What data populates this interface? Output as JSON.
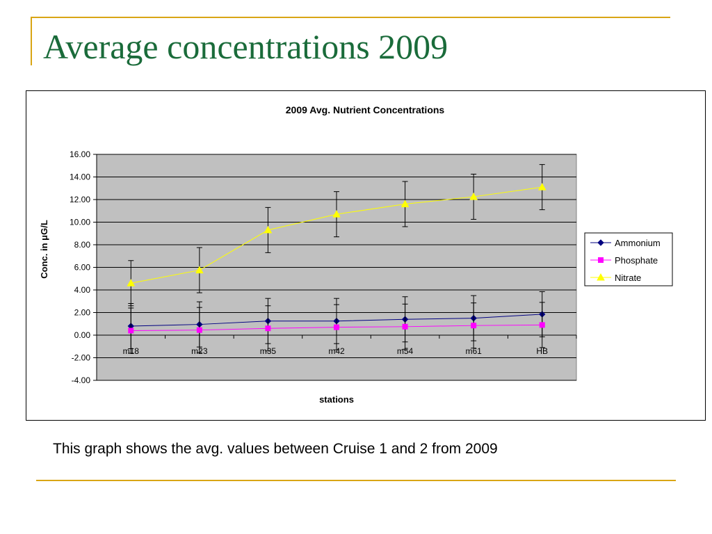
{
  "slide": {
    "title": "Average concentrations 2009",
    "caption": "This graph shows the avg. values between Cruise 1 and 2 from 2009"
  },
  "colors": {
    "title": "#1a6b3a",
    "rule": "#d9a514",
    "plot_background": "#c0c0c0",
    "ammonium": "#000080",
    "phosphate": "#ff00ff",
    "nitrate": "#ffff00"
  },
  "chart_data": {
    "type": "line",
    "title": "2009 Avg. Nutrient Concentrations",
    "xlabel": "stations",
    "ylabel": "Conc. in μG/L",
    "categories": [
      "m18",
      "m23",
      "m35",
      "m42",
      "m54",
      "m61",
      "HB"
    ],
    "ylim": [
      -4,
      16
    ],
    "ytick_step": 2,
    "yticks": [
      "16.00",
      "14.00",
      "12.00",
      "10.00",
      "8.00",
      "6.00",
      "4.00",
      "2.00",
      "0.00",
      "-2.00",
      "-4.00"
    ],
    "grid": true,
    "legend": "right",
    "series": [
      {
        "name": "Ammonium",
        "marker": "diamond",
        "values": [
          0.8,
          0.95,
          1.25,
          1.25,
          1.4,
          1.5,
          1.85
        ],
        "error": [
          2.0,
          2.0,
          2.0,
          2.0,
          2.0,
          2.0,
          2.0
        ]
      },
      {
        "name": "Phosphate",
        "marker": "square",
        "values": [
          0.4,
          0.45,
          0.6,
          0.7,
          0.75,
          0.85,
          0.9
        ],
        "error": [
          2.0,
          2.0,
          2.0,
          2.0,
          2.0,
          2.0,
          2.0
        ]
      },
      {
        "name": "Nitrate",
        "marker": "triangle",
        "values": [
          4.6,
          5.75,
          9.3,
          10.7,
          11.6,
          12.25,
          13.1
        ],
        "error": [
          2.0,
          2.0,
          2.0,
          2.0,
          2.0,
          2.0,
          2.0
        ]
      }
    ]
  }
}
